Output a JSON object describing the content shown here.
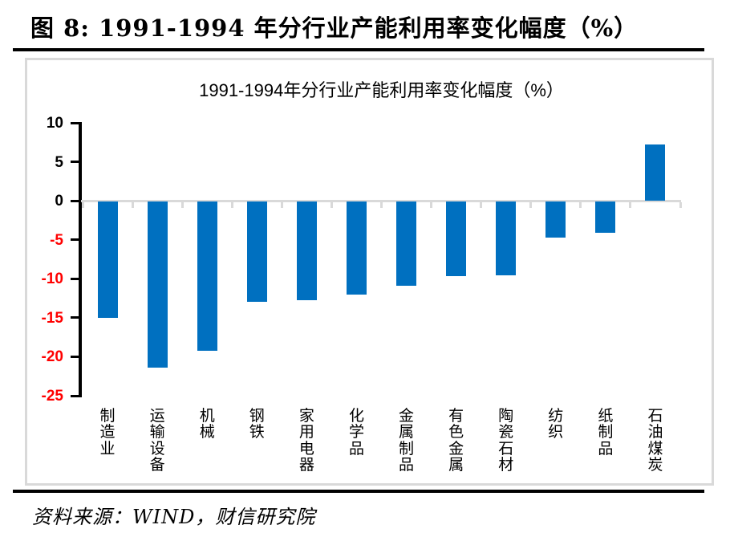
{
  "figure": {
    "title": "图 8:  1991-1994 年分行业产能利用率变化幅度（%）",
    "source": "资料来源：WIND，财信研究院"
  },
  "chart_data": {
    "type": "bar",
    "title": "1991-1994年分行业产能利用率变化幅度（%）",
    "categories": [
      "制造业",
      "运输设备",
      "机械",
      "钢铁",
      "家用电器",
      "化学品",
      "金属制品",
      "有色金属",
      "陶瓷石材",
      "纺织",
      "纸制品",
      "石油煤炭"
    ],
    "values": [
      -14.9,
      -21.3,
      -19.1,
      -12.9,
      -12.6,
      -11.9,
      -10.8,
      -9.6,
      -9.5,
      -4.6,
      -4.0,
      7.2
    ],
    "xlabel": "",
    "ylabel": "",
    "ylim": [
      -25,
      10
    ],
    "y_ticks": [
      10,
      5,
      0,
      -5,
      -10,
      -15,
      -20,
      -25
    ],
    "grid": false,
    "legend": null,
    "bar_color": "#0070C0",
    "axis_color": "#000000",
    "zero_line_color": "#D9D9D9",
    "negative_tick_color": "#FF0000",
    "nonnegative_tick_color": "#000000"
  }
}
